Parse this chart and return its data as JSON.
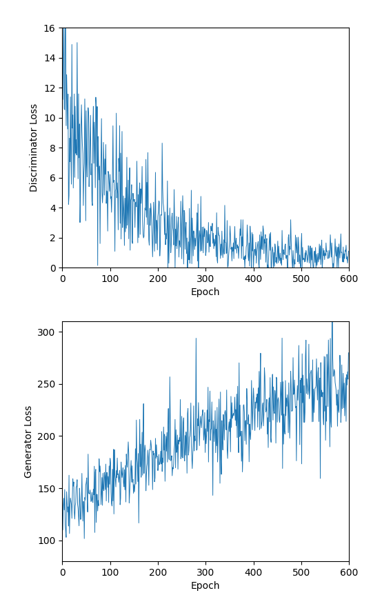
{
  "seed": 42,
  "n_epochs": 600,
  "disc_ylim": [
    0,
    16
  ],
  "disc_yticks": [
    0,
    2,
    4,
    6,
    8,
    10,
    12,
    14,
    16
  ],
  "gen_ylim": [
    80,
    310
  ],
  "gen_yticks": [
    100,
    150,
    200,
    250,
    300
  ],
  "xlim": [
    0,
    600
  ],
  "xticks": [
    0,
    100,
    200,
    300,
    400,
    500,
    600
  ],
  "xlabel": "Epoch",
  "disc_ylabel": "Discriminator Loss",
  "gen_ylabel": "Generator Loss",
  "line_color": "#1f77b4",
  "line_width": 0.7,
  "figsize": [
    5.54,
    8.92
  ],
  "dpi": 100
}
